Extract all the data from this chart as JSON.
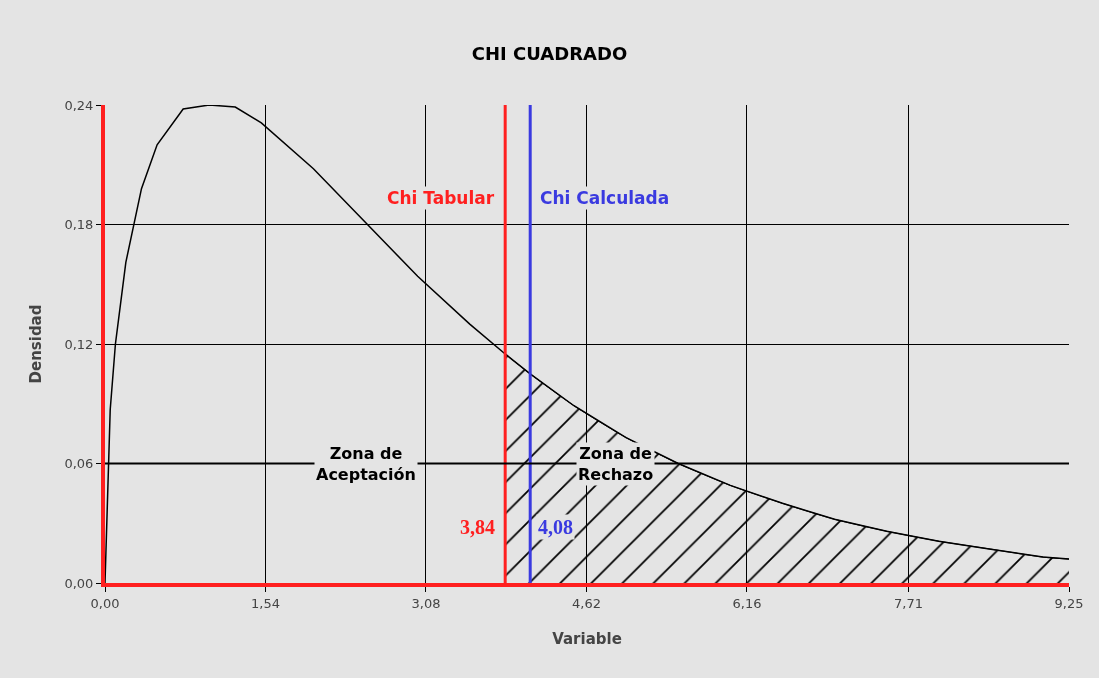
{
  "chart_data": {
    "type": "line",
    "title": "CHI CUADRADO",
    "xlabel": "Variable",
    "ylabel": "Densidad",
    "xlim": [
      0,
      9.25
    ],
    "ylim": [
      0,
      0.24
    ],
    "xticks": [
      {
        "value": 0,
        "label": "0,00"
      },
      {
        "value": 1.54,
        "label": "1,54"
      },
      {
        "value": 3.08,
        "label": "3,08"
      },
      {
        "value": 4.62,
        "label": "4,62"
      },
      {
        "value": 6.16,
        "label": "6,16"
      },
      {
        "value": 7.71,
        "label": "7,71"
      },
      {
        "value": 9.25,
        "label": "9,25"
      }
    ],
    "yticks": [
      {
        "value": 0,
        "label": "0,00"
      },
      {
        "value": 0.06,
        "label": "0,06"
      },
      {
        "value": 0.12,
        "label": "0,12"
      },
      {
        "value": 0.18,
        "label": "0,18"
      },
      {
        "value": 0.24,
        "label": "0,24"
      }
    ],
    "grid": true,
    "marker": "none",
    "line_style": "solid",
    "series": [
      {
        "color": "#000000",
        "x": [
          0,
          0.05,
          0.1,
          0.2,
          0.35,
          0.5,
          0.75,
          1,
          1.25,
          1.5,
          2,
          2.5,
          3,
          3.5,
          3.84,
          4.08,
          4.5,
          5,
          5.5,
          6,
          6.5,
          7,
          7.5,
          8,
          8.5,
          9,
          9.25
        ],
        "values": [
          0,
          0.087,
          0.12,
          0.161,
          0.198,
          0.22,
          0.238,
          0.24,
          0.239,
          0.231,
          0.208,
          0.181,
          0.154,
          0.13,
          0.115,
          0.105,
          0.089,
          0.073,
          0.06,
          0.049,
          0.04,
          0.032,
          0.026,
          0.021,
          0.017,
          0.013,
          0.012
        ]
      },
      {
        "type": "area",
        "color": "#000000",
        "x": [
          3.84,
          4.08,
          4.5,
          5,
          5.5,
          6,
          6.5,
          7,
          7.5,
          8,
          8.5,
          9,
          9.25
        ],
        "values": [
          0.115,
          0.105,
          0.089,
          0.073,
          0.06,
          0.049,
          0.04,
          0.032,
          0.026,
          0.021,
          0.017,
          0.013,
          0.012
        ]
      }
    ],
    "ref_lines": [
      {
        "axis": "x",
        "value": 3.84,
        "label": "Chi Tabular",
        "color": "#ff2020"
      },
      {
        "axis": "x",
        "value": 4.08,
        "label": "Chi Calculada",
        "color": "#3a3ae0"
      },
      {
        "axis": "y",
        "value": 0.06,
        "color": "#000000"
      }
    ],
    "annotations": [
      {
        "text": "Zona de\nAceptación",
        "x": 2.5,
        "y": 0.06
      },
      {
        "text": "Zona de\nRechazo",
        "x": 4.9,
        "y": 0.06
      },
      {
        "text": "3,84",
        "x": 3.84,
        "y": 0.028
      },
      {
        "text": "4,08",
        "x": 4.08,
        "y": 0.028
      }
    ]
  }
}
